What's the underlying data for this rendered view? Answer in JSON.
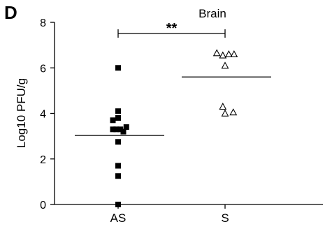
{
  "chart_data": {
    "type": "scatter",
    "panel_label": "D",
    "title": "Brain",
    "ylabel": "Log10 PFU/g",
    "xlabel": "",
    "ylim": [
      0,
      8
    ],
    "yticks": [
      0,
      2,
      4,
      6,
      8
    ],
    "categories": [
      "AS",
      "S"
    ],
    "series": [
      {
        "category": "AS",
        "marker": "filled-square",
        "color": "#000000",
        "values": [
          6.0,
          4.1,
          3.8,
          3.7,
          3.4,
          3.3,
          3.3,
          3.3,
          3.2,
          2.75,
          1.7,
          1.25,
          0.0
        ],
        "jitter": [
          0,
          0,
          0,
          -0.14,
          0.22,
          -0.14,
          -0.05,
          0.06,
          0.14,
          0,
          0,
          0,
          0
        ],
        "mean": 3.03
      },
      {
        "category": "S",
        "marker": "open-triangle",
        "color": "#000000",
        "values": [
          6.65,
          6.6,
          6.55,
          6.6,
          6.1,
          4.3,
          4.05,
          4.0
        ],
        "jitter": [
          -0.22,
          0.1,
          -0.06,
          0.24,
          0,
          -0.06,
          0.22,
          0
        ],
        "mean": 5.6
      }
    ],
    "significance": {
      "text": "**",
      "from": "AS",
      "to": "S"
    }
  }
}
